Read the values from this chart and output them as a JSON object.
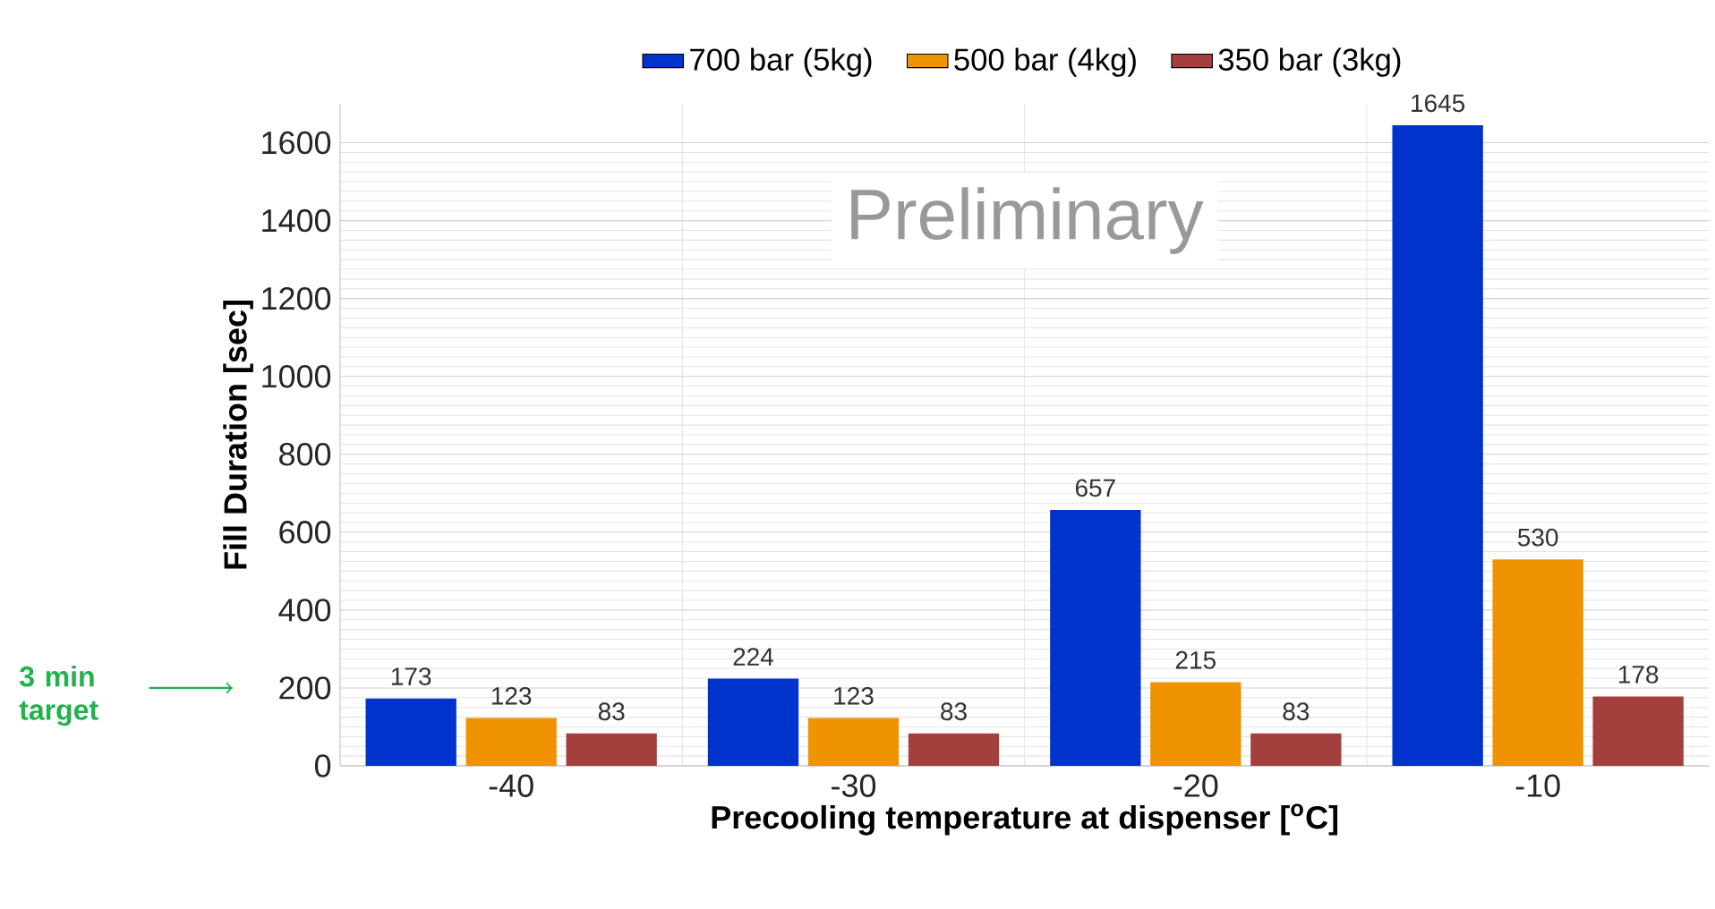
{
  "chart_data": {
    "type": "bar",
    "categories": [
      "-40",
      "-30",
      "-20",
      "-10"
    ],
    "series": [
      {
        "name": "700 bar (5kg)",
        "color": "#0033cc",
        "values": [
          173,
          224,
          657,
          1645
        ]
      },
      {
        "name": "500 bar (4kg)",
        "color": "#ef9400",
        "values": [
          123,
          123,
          215,
          530
        ]
      },
      {
        "name": "350 bar (3kg)",
        "color": "#a33f3c",
        "values": [
          83,
          83,
          83,
          178
        ]
      }
    ],
    "xlabel": "Precooling temperature at dispenser [$^{o}$C]",
    "ylabel": "Fill Duration [sec]",
    "ylim": [
      0,
      1700
    ],
    "yticks": [
      0,
      200,
      400,
      600,
      800,
      1000,
      1200,
      1400,
      1600
    ],
    "grid": true,
    "legend": "top",
    "data_labels": true,
    "annotations": [
      "Preliminary",
      "3 min target"
    ]
  }
}
